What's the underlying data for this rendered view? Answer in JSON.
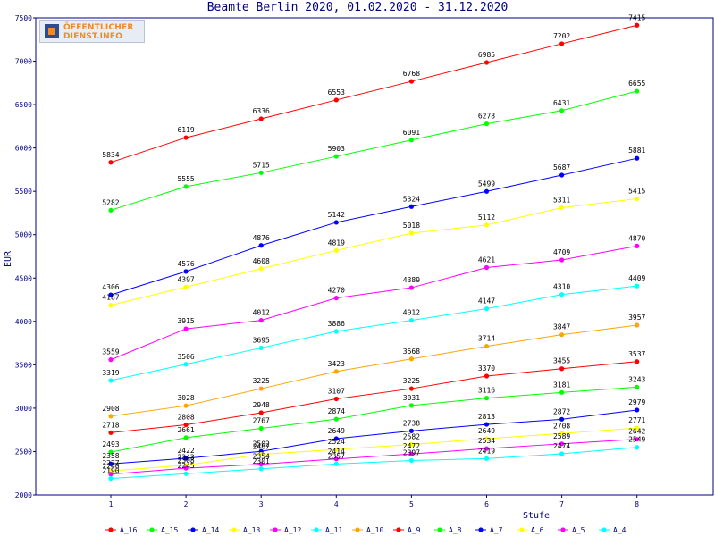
{
  "chart_data": {
    "type": "line",
    "title": "Beamte Berlin 2020, 01.02.2020 - 31.12.2020",
    "xlabel": "Stufe",
    "ylabel": "EUR",
    "x": [
      1,
      2,
      3,
      4,
      5,
      6,
      7,
      8
    ],
    "ylim": [
      2000,
      7500
    ],
    "yticks": [
      2000,
      2500,
      3000,
      3500,
      4000,
      4500,
      5000,
      5500,
      6000,
      6500,
      7000,
      7500
    ],
    "grid": false,
    "legend_position": "bottom",
    "series": [
      {
        "name": "A_16",
        "color": "#ff0000",
        "values": [
          5834,
          6119,
          6336,
          6553,
          6768,
          6985,
          7202,
          7415
        ]
      },
      {
        "name": "A_15",
        "color": "#00ff00",
        "values": [
          5282,
          5555,
          5715,
          5903,
          6091,
          6278,
          6431,
          6655
        ]
      },
      {
        "name": "A_14",
        "color": "#0000ff",
        "values": [
          4306,
          4576,
          4876,
          5142,
          5324,
          5499,
          5687,
          5881
        ]
      },
      {
        "name": "A_13",
        "color": "#ffff00",
        "values": [
          4187,
          4397,
          4608,
          4819,
          5018,
          5112,
          5311,
          5415
        ]
      },
      {
        "name": "A_12",
        "color": "#ff00ff",
        "values": [
          3559,
          3915,
          4012,
          4270,
          4389,
          4621,
          4709,
          4870
        ]
      },
      {
        "name": "A_11",
        "color": "#00ffff",
        "values": [
          3319,
          3506,
          3695,
          3886,
          4012,
          4147,
          4310,
          4409
        ]
      },
      {
        "name": "A_10",
        "color": "#ffa500",
        "values": [
          2908,
          3028,
          3225,
          3423,
          3568,
          3714,
          3847,
          3957
        ]
      },
      {
        "name": "A_9",
        "color": "#ff0000",
        "values": [
          2718,
          2808,
          2948,
          3107,
          3225,
          3370,
          3455,
          3537
        ]
      },
      {
        "name": "A_8",
        "color": "#00ff00",
        "values": [
          2493,
          2661,
          2767,
          2874,
          3031,
          3116,
          3181,
          3243
        ]
      },
      {
        "name": "A_7",
        "color": "#0000ff",
        "values": [
          2358,
          2422,
          2502,
          2649,
          2738,
          2813,
          2872,
          2979
        ]
      },
      {
        "name": "A_6",
        "color": "#ffff00",
        "values": [
          2277,
          2343,
          2467,
          2524,
          2582,
          2649,
          2708,
          2771
        ]
      },
      {
        "name": "A_5",
        "color": "#ff00ff",
        "values": [
          2240,
          2308,
          2354,
          2414,
          2472,
          2534,
          2589,
          2642
        ]
      },
      {
        "name": "A_4",
        "color": "#00ffff",
        "values": [
          2190,
          2245,
          2301,
          2357,
          2397,
          2419,
          2474,
          2549
        ]
      }
    ]
  },
  "logo": {
    "line1": "ÖFFENTLICHER",
    "line2": "DIENST.INFO"
  },
  "colors": {
    "axis": "#000080",
    "background": "#ffffff"
  }
}
